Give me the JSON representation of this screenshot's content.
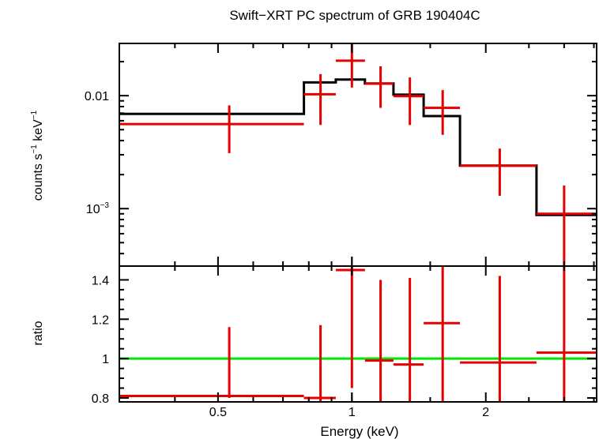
{
  "chart_data": {
    "title": "Swift−XRT PC spectrum of GRB 190404C",
    "xlabel": "Energy (keV)",
    "x_scale": "log",
    "xlim": [
      0.3,
      3.55
    ],
    "x_ticks": [
      {
        "value": 0.5,
        "label": "0.5"
      },
      {
        "value": 1,
        "label": "1"
      },
      {
        "value": 2,
        "label": "2"
      }
    ],
    "colors": {
      "data": "#e60000",
      "model": "#000000",
      "unity": "#00e600",
      "axes": "#000000"
    },
    "panels": [
      {
        "name": "spectrum",
        "type": "step-errorbar",
        "y_scale": "log",
        "ylim": [
          0.00031,
          0.029
        ],
        "ylabel_main": "counts s",
        "ylabel_sup": "−1",
        "ylabel_mid": " keV",
        "ylabel_sup2": "−1",
        "y_tick_labels": [
          {
            "value": 0.01,
            "base": "0.01",
            "sup": ""
          },
          {
            "value": 0.001,
            "base": "10",
            "sup": "−3"
          }
        ],
        "data": [
          {
            "x_lo": 0.3,
            "x_hi": 0.78,
            "y": 0.0056,
            "y_lo": 0.0031,
            "y_hi": 0.0082,
            "x_cen": 0.53
          },
          {
            "x_lo": 0.78,
            "x_hi": 0.92,
            "y": 0.0103,
            "y_lo": 0.0055,
            "y_hi": 0.0155,
            "x_cen": 0.85
          },
          {
            "x_lo": 0.92,
            "x_hi": 1.07,
            "y": 0.0204,
            "y_lo": 0.0118,
            "y_hi": 0.029,
            "x_cen": 1.0
          },
          {
            "x_lo": 1.07,
            "x_hi": 1.24,
            "y": 0.0128,
            "y_lo": 0.0078,
            "y_hi": 0.0182,
            "x_cen": 1.16
          },
          {
            "x_lo": 1.24,
            "x_hi": 1.45,
            "y": 0.0099,
            "y_lo": 0.0055,
            "y_hi": 0.0145,
            "x_cen": 1.35
          },
          {
            "x_lo": 1.45,
            "x_hi": 1.75,
            "y": 0.0078,
            "y_lo": 0.0045,
            "y_hi": 0.0112,
            "x_cen": 1.6
          },
          {
            "x_lo": 1.75,
            "x_hi": 2.6,
            "y": 0.0024,
            "y_lo": 0.0013,
            "y_hi": 0.0034,
            "x_cen": 2.15
          },
          {
            "x_lo": 2.6,
            "x_hi": 3.55,
            "y": 0.0009,
            "y_lo": 0.0003,
            "y_hi": 0.0016,
            "x_cen": 3.0
          }
        ],
        "model": [
          {
            "x_lo": 0.3,
            "x_hi": 0.78,
            "y": 0.0069
          },
          {
            "x_lo": 0.78,
            "x_hi": 0.92,
            "y": 0.0131
          },
          {
            "x_lo": 0.92,
            "x_hi": 1.07,
            "y": 0.0139
          },
          {
            "x_lo": 1.07,
            "x_hi": 1.24,
            "y": 0.0128
          },
          {
            "x_lo": 1.24,
            "x_hi": 1.45,
            "y": 0.0102
          },
          {
            "x_lo": 1.45,
            "x_hi": 1.75,
            "y": 0.0066
          },
          {
            "x_lo": 1.75,
            "x_hi": 2.6,
            "y": 0.0024
          },
          {
            "x_lo": 2.6,
            "x_hi": 3.55,
            "y": 0.00088
          }
        ]
      },
      {
        "name": "ratio",
        "type": "errorbar",
        "y_scale": "linear",
        "ylim": [
          0.78,
          1.47
        ],
        "ylabel": "ratio",
        "y_ticks": [
          {
            "value": 0.8,
            "label": "0.8"
          },
          {
            "value": 1,
            "label": "1"
          },
          {
            "value": 1.2,
            "label": "1.2"
          },
          {
            "value": 1.4,
            "label": "1.4"
          }
        ],
        "unity_line": 1.0,
        "data": [
          {
            "x_lo": 0.3,
            "x_hi": 0.78,
            "y": 0.81,
            "y_lo": 0.8,
            "y_hi": 1.16,
            "x_cen": 0.53
          },
          {
            "x_lo": 0.78,
            "x_hi": 0.92,
            "y": 0.8,
            "y_lo": 0.78,
            "y_hi": 1.17,
            "x_cen": 0.85
          },
          {
            "x_lo": 0.92,
            "x_hi": 1.07,
            "y": 1.45,
            "y_lo": 0.85,
            "y_hi": 1.47,
            "x_cen": 1.0
          },
          {
            "x_lo": 1.07,
            "x_hi": 1.24,
            "y": 0.99,
            "y_lo": 0.78,
            "y_hi": 1.4,
            "x_cen": 1.16
          },
          {
            "x_lo": 1.24,
            "x_hi": 1.45,
            "y": 0.97,
            "y_lo": 0.78,
            "y_hi": 1.41,
            "x_cen": 1.35
          },
          {
            "x_lo": 1.45,
            "x_hi": 1.75,
            "y": 1.18,
            "y_lo": 0.78,
            "y_hi": 1.47,
            "x_cen": 1.6
          },
          {
            "x_lo": 1.75,
            "x_hi": 2.6,
            "y": 0.98,
            "y_lo": 0.78,
            "y_hi": 1.42,
            "x_cen": 2.15
          },
          {
            "x_lo": 2.6,
            "x_hi": 3.55,
            "y": 1.03,
            "y_lo": 0.78,
            "y_hi": 1.47,
            "x_cen": 3.0
          }
        ]
      }
    ]
  }
}
